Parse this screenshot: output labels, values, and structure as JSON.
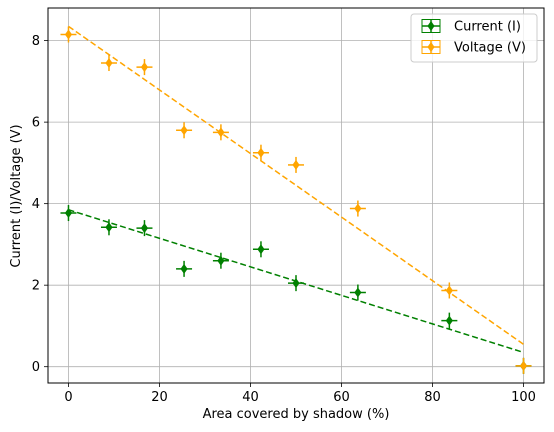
{
  "chart_data": {
    "type": "scatter",
    "xlabel": "Area covered by shadow (%)",
    "ylabel": "Current (I)/Voltage (V)",
    "xlim": [
      -4.5,
      104.5
    ],
    "ylim": [
      -0.4,
      8.8
    ],
    "xticks": [
      0,
      20,
      40,
      60,
      80,
      100
    ],
    "yticks": [
      0,
      2,
      4,
      6,
      8
    ],
    "grid": true,
    "legend_position": "top-right",
    "series": [
      {
        "name": "Current (I)",
        "color": "#008000",
        "marker": "diamond",
        "points": [
          {
            "x": 0,
            "y": 3.77
          },
          {
            "x": 8.9,
            "y": 3.42
          },
          {
            "x": 16.7,
            "y": 3.4
          },
          {
            "x": 25.4,
            "y": 2.4
          },
          {
            "x": 33.5,
            "y": 2.6
          },
          {
            "x": 42.3,
            "y": 2.88
          },
          {
            "x": 50.0,
            "y": 2.05
          },
          {
            "x": 63.6,
            "y": 1.82
          },
          {
            "x": 83.7,
            "y": 1.13
          },
          {
            "x": 100,
            "y": 0.02
          }
        ],
        "fit_line": {
          "x": [
            0,
            100
          ],
          "y": [
            3.85,
            0.35
          ]
        }
      },
      {
        "name": "Voltage (V)",
        "color": "#FFA500",
        "marker": "diamond",
        "points": [
          {
            "x": 0,
            "y": 8.15
          },
          {
            "x": 8.9,
            "y": 7.45
          },
          {
            "x": 16.7,
            "y": 7.35
          },
          {
            "x": 25.4,
            "y": 5.8
          },
          {
            "x": 33.5,
            "y": 5.75
          },
          {
            "x": 42.3,
            "y": 5.25
          },
          {
            "x": 50.0,
            "y": 4.95
          },
          {
            "x": 63.6,
            "y": 3.88
          },
          {
            "x": 83.7,
            "y": 1.87
          },
          {
            "x": 100,
            "y": 0.02
          }
        ],
        "fit_line": {
          "x": [
            0,
            100
          ],
          "y": [
            8.35,
            0.55
          ]
        }
      }
    ]
  }
}
